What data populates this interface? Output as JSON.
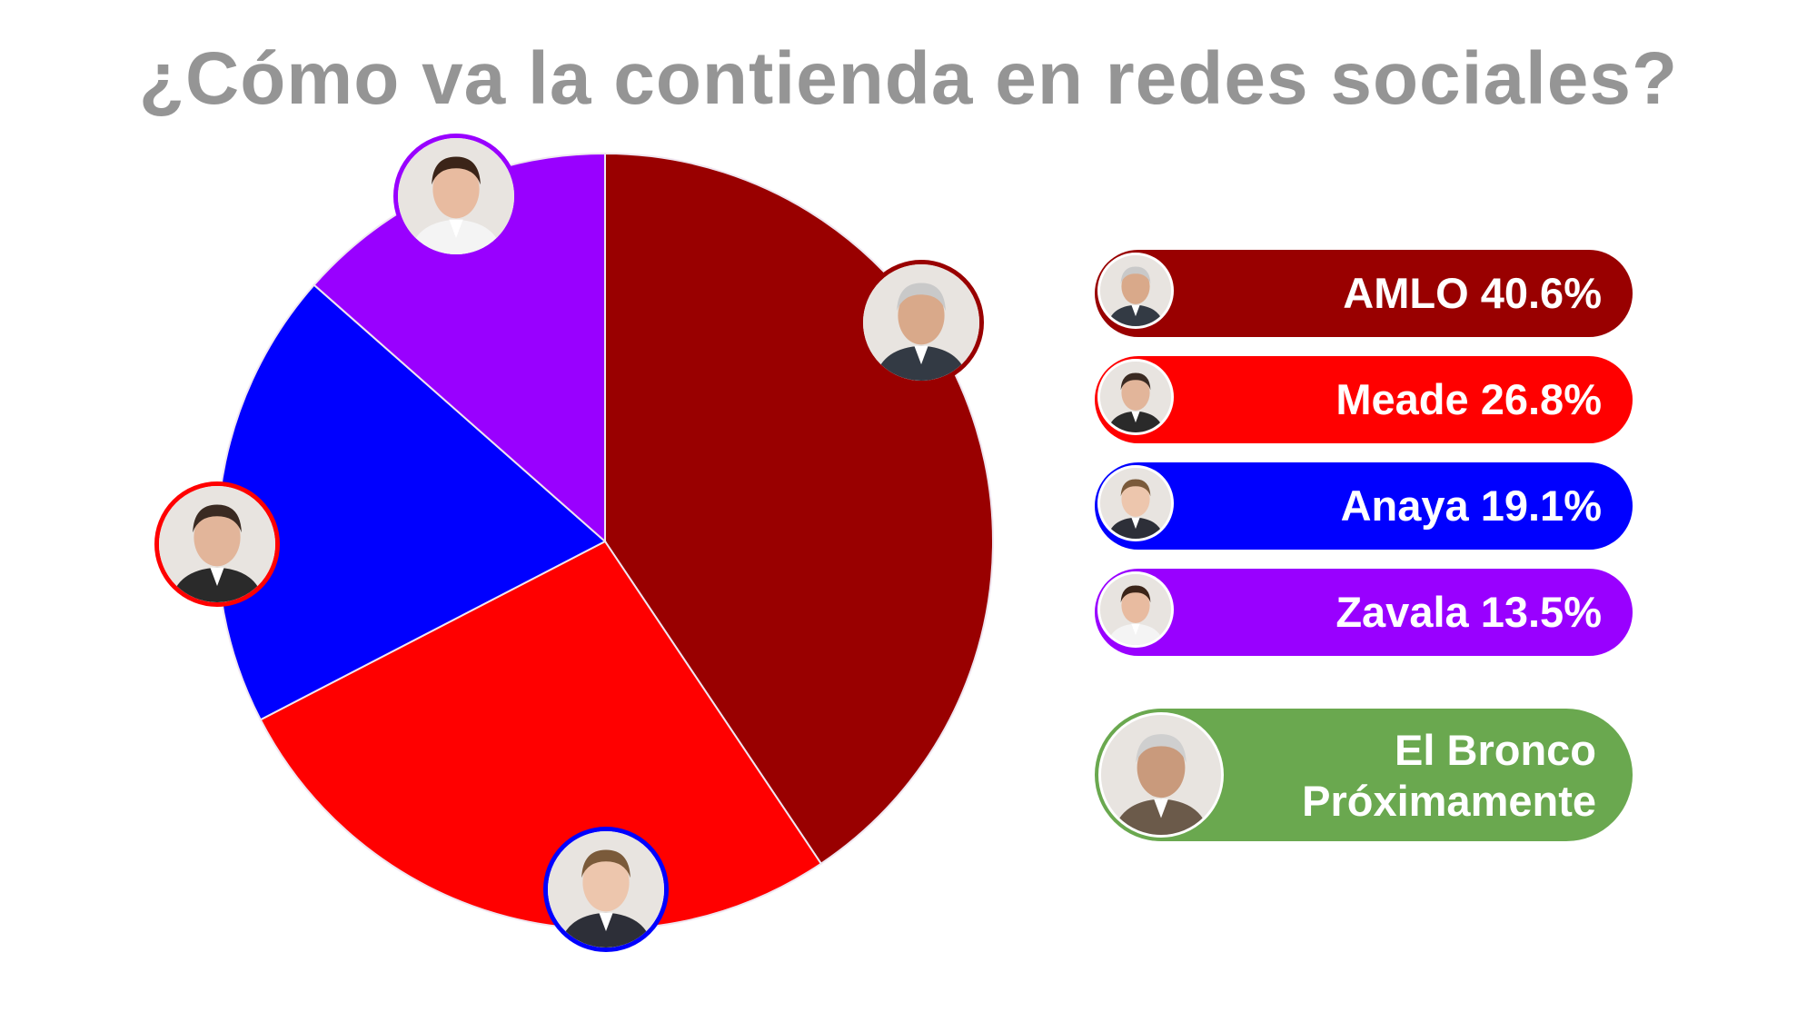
{
  "title": "¿Cómo va la contienda en redes sociales?",
  "chart_data": {
    "type": "pie",
    "categories": [
      "AMLO",
      "Meade",
      "Anaya",
      "Zavala"
    ],
    "values": [
      40.6,
      26.8,
      19.1,
      13.5
    ],
    "unit": "%",
    "colors": [
      "#990000",
      "#ff0000",
      "#0000ff",
      "#9900ff"
    ]
  },
  "legend": [
    {
      "name": "AMLO",
      "value": "40.6%",
      "color": "#990000",
      "icon": "amlo-photo-icon"
    },
    {
      "name": "Meade",
      "value": "26.8%",
      "color": "#ff0000",
      "icon": "meade-photo-icon"
    },
    {
      "name": "Anaya",
      "value": "19.1%",
      "color": "#0000ff",
      "icon": "anaya-photo-icon"
    },
    {
      "name": "Zavala",
      "value": "13.5%",
      "color": "#9900ff",
      "icon": "zavala-photo-icon"
    }
  ],
  "bronco": {
    "line1": "El Bronco",
    "line2": "Próximamente",
    "color": "#6aa84f",
    "icon": "bronco-photo-icon"
  }
}
